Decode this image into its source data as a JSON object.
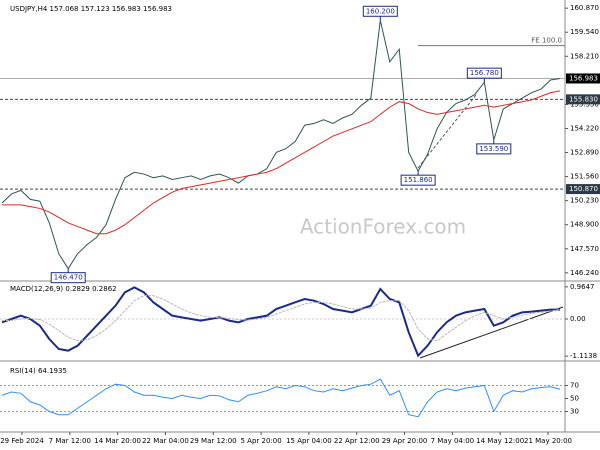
{
  "chart_data": [
    {
      "type": "line",
      "title": "USDJPY,H4 157.068 157.123 156.983 156.983",
      "ylim": [
        145.9,
        161.1
      ],
      "yticks": [
        {
          "value": 146.24,
          "label": "146.240"
        },
        {
          "value": 147.57,
          "label": "147.570"
        },
        {
          "value": 148.9,
          "label": "148.900"
        },
        {
          "value": 150.23,
          "label": "150.230"
        },
        {
          "value": 151.56,
          "label": "151.560"
        },
        {
          "value": 152.89,
          "label": "152.890"
        },
        {
          "value": 154.22,
          "label": "154.220"
        },
        {
          "value": 155.55,
          "label": "155.550"
        },
        {
          "value": 158.21,
          "label": "158.210"
        },
        {
          "value": 159.54,
          "label": "159.540"
        },
        {
          "value": 160.87,
          "label": "160.870"
        }
      ],
      "series": [
        {
          "color": "#2f5553",
          "values": [
            150.1,
            150.6,
            150.8,
            150.3,
            150.2,
            149.0,
            147.3,
            146.47,
            147.3,
            147.8,
            148.2,
            148.9,
            150.3,
            151.5,
            151.8,
            151.7,
            151.5,
            151.6,
            151.4,
            151.5,
            151.6,
            151.4,
            151.6,
            151.7,
            151.5,
            151.2,
            151.6,
            151.7,
            152.0,
            152.9,
            153.1,
            153.5,
            154.4,
            154.5,
            154.7,
            154.5,
            154.8,
            155.0,
            155.5,
            155.9,
            160.2,
            157.9,
            158.6,
            152.9,
            151.86,
            152.8,
            154.2,
            155.1,
            155.6,
            155.8,
            156.1,
            156.78,
            153.59,
            155.3,
            155.6,
            155.9,
            156.2,
            156.4,
            156.9,
            156.983
          ]
        },
        {
          "color": "#e02828",
          "values": [
            150.0,
            150.0,
            150.0,
            149.9,
            149.8,
            149.6,
            149.3,
            149.0,
            148.8,
            148.6,
            148.4,
            148.4,
            148.6,
            148.9,
            149.3,
            149.7,
            150.1,
            150.4,
            150.7,
            150.9,
            151.0,
            151.1,
            151.2,
            151.3,
            151.4,
            151.5,
            151.6,
            151.7,
            151.8,
            152.0,
            152.3,
            152.6,
            152.9,
            153.2,
            153.5,
            153.8,
            154.0,
            154.2,
            154.4,
            154.6,
            155.0,
            155.4,
            155.7,
            155.6,
            155.3,
            155.1,
            155.0,
            155.1,
            155.2,
            155.3,
            155.4,
            155.5,
            155.4,
            155.5,
            155.6,
            155.7,
            155.8,
            156.0,
            156.2,
            156.3
          ]
        }
      ],
      "levels": [
        {
          "value": 156.983,
          "label": "156.983",
          "style": "solid"
        },
        {
          "value": 155.83,
          "label": "155.830",
          "style": "dashed"
        },
        {
          "value": 150.87,
          "label": "150.870",
          "style": "dashed"
        }
      ],
      "fe_level": {
        "value": 158.8,
        "label": "FE 100.0"
      },
      "annotations": [
        {
          "value": 160.2,
          "label": "160.200",
          "position": "above"
        },
        {
          "value": 156.78,
          "label": "156.780",
          "position": "above"
        },
        {
          "value": 153.59,
          "label": "153.590",
          "position": "below"
        },
        {
          "value": 151.86,
          "label": "151.860",
          "position": "below"
        },
        {
          "value": 146.47,
          "label": "146.470",
          "position": "below"
        }
      ]
    },
    {
      "type": "line",
      "title": "MACD(12,26,9) 0.2829 0.2862",
      "ylim": [
        -1.2,
        1.05
      ],
      "yticks": [
        0.9647,
        {
          "value": 0,
          "label": "0.00"
        },
        -1.1138
      ],
      "series": [
        {
          "color": "#1a2a8a",
          "values": [
            -0.1,
            0.0,
            0.1,
            0.0,
            -0.2,
            -0.6,
            -0.9,
            -0.95,
            -0.8,
            -0.5,
            -0.2,
            0.1,
            0.4,
            0.8,
            0.95,
            0.8,
            0.5,
            0.3,
            0.1,
            0.05,
            0.0,
            -0.05,
            0.0,
            0.05,
            -0.05,
            -0.1,
            0.0,
            0.05,
            0.1,
            0.3,
            0.4,
            0.5,
            0.6,
            0.55,
            0.45,
            0.3,
            0.25,
            0.2,
            0.3,
            0.4,
            0.9,
            0.6,
            0.5,
            -0.4,
            -1.1,
            -0.8,
            -0.4,
            -0.1,
            0.1,
            0.2,
            0.25,
            0.3,
            -0.2,
            -0.1,
            0.1,
            0.2,
            0.22,
            0.25,
            0.28,
            0.2829
          ]
        },
        {
          "color": "#b8b8b8",
          "values": [
            -0.05,
            -0.04,
            0.0,
            0.02,
            -0.02,
            -0.15,
            -0.35,
            -0.55,
            -0.65,
            -0.62,
            -0.5,
            -0.3,
            -0.05,
            0.25,
            0.55,
            0.7,
            0.7,
            0.6,
            0.45,
            0.3,
            0.18,
            0.1,
            0.05,
            0.04,
            0.02,
            -0.02,
            -0.03,
            0.0,
            0.05,
            0.15,
            0.25,
            0.35,
            0.45,
            0.5,
            0.5,
            0.45,
            0.38,
            0.3,
            0.3,
            0.33,
            0.5,
            0.55,
            0.55,
            0.25,
            -0.3,
            -0.6,
            -0.65,
            -0.45,
            -0.25,
            -0.05,
            0.1,
            0.2,
            0.1,
            0.0,
            0.05,
            0.12,
            0.17,
            0.2,
            0.24,
            0.2862
          ]
        }
      ]
    },
    {
      "type": "line",
      "title": "RSI(14) 64.1935",
      "ylim": [
        0,
        100
      ],
      "yticks": [
        70,
        50,
        30
      ],
      "series": [
        {
          "color": "#2f8fff",
          "values": [
            55,
            60,
            58,
            45,
            40,
            30,
            25,
            25,
            35,
            45,
            55,
            65,
            72,
            70,
            60,
            55,
            55,
            52,
            50,
            55,
            52,
            50,
            55,
            54,
            48,
            45,
            55,
            58,
            62,
            68,
            65,
            70,
            68,
            62,
            60,
            65,
            62,
            66,
            70,
            72,
            80,
            55,
            62,
            25,
            22,
            45,
            60,
            65,
            62,
            66,
            68,
            70,
            30,
            55,
            62,
            60,
            65,
            67,
            68,
            64.1935
          ]
        }
      ]
    }
  ],
  "time_axis": [
    "29 Feb 2024",
    "7 Mar 12:00",
    "14 Mar 20:00",
    "22 Mar 04:00",
    "29 Mar 12:00",
    "5 Apr 20:00",
    "15 Apr 04:00",
    "22 Apr 12:00",
    "29 Apr 20:00",
    "7 May 04:00",
    "14 May 12:00",
    "21 May 20:00"
  ],
  "watermark": "ActionForex.com"
}
